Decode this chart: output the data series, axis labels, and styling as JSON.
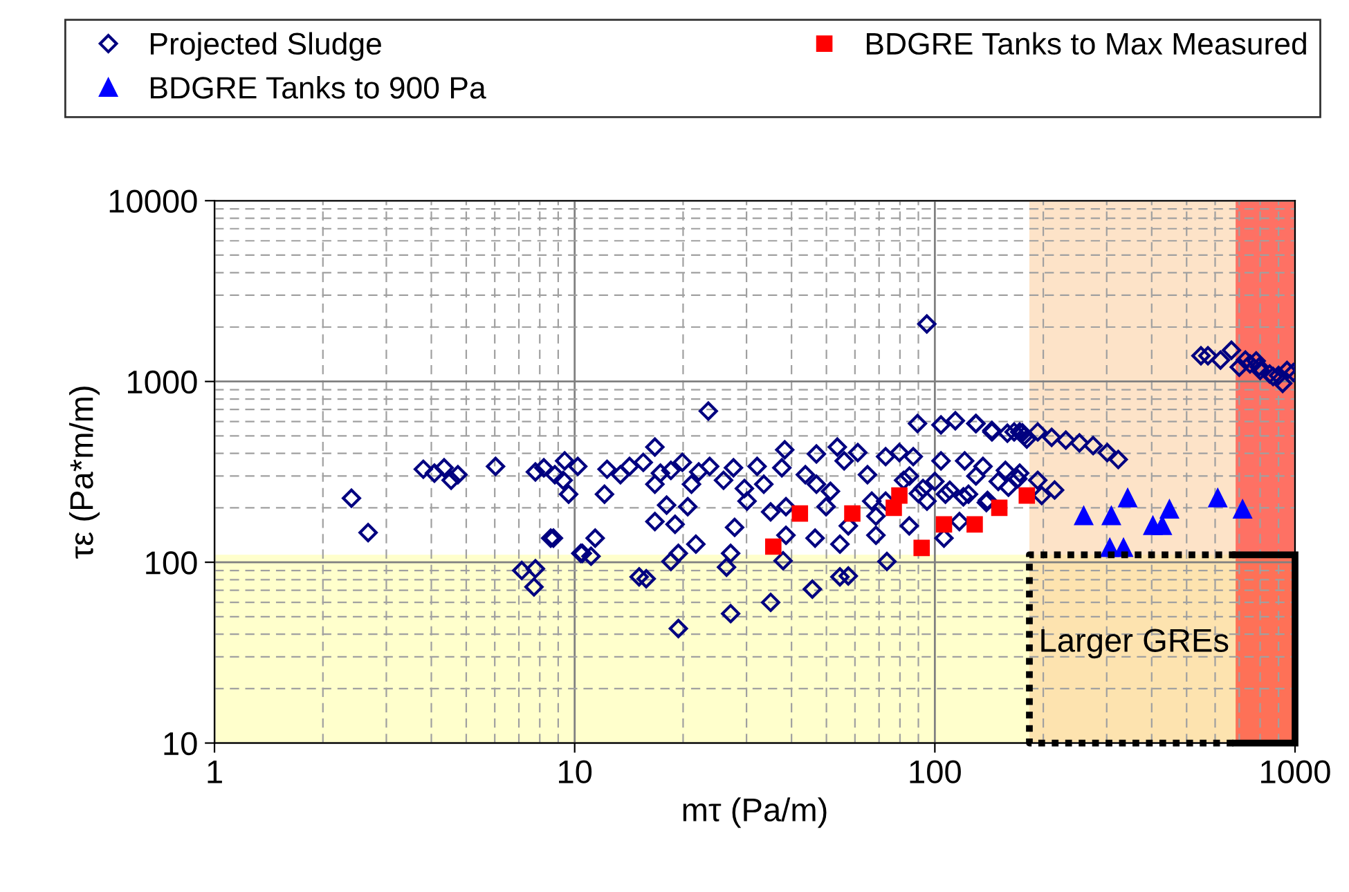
{
  "chart_data": {
    "type": "scatter",
    "xlabel": "mτ (Pa/m)",
    "ylabel": "τε (Pa*m/m)",
    "log": "xy",
    "xlim": [
      1,
      1000
    ],
    "xticks": [
      1,
      10,
      100,
      1000
    ],
    "ylim": [
      10,
      10000
    ],
    "yticks": [
      10,
      100,
      1000,
      10000
    ],
    "grid": true,
    "legend": "top",
    "series": [
      {
        "name": "Projected Sludge",
        "color": "#000080",
        "marker": "diamond",
        "x": [
          2.4,
          2.67,
          3.8,
          4.08,
          4.34,
          4.54,
          4.74,
          6.03,
          7.78,
          8.21,
          8.81,
          9.38,
          9.29,
          10.2,
          9.62,
          12.1,
          8.58,
          11.4,
          7.13,
          7.78,
          7.71,
          10.5,
          11.1,
          12.3,
          13.4,
          14.2,
          15.5,
          16.7,
          16.7,
          17.3,
          18.5,
          19.9,
          21.1,
          22.1,
          23.7,
          18.0,
          20.6,
          16.7,
          19.0,
          19.4,
          21.7,
          8.73,
          25.9,
          27.6,
          29.6,
          30.1,
          27.8,
          32.1,
          33.5,
          38.3,
          37.6,
          35.0,
          38.6,
          38.6,
          43.7,
          46.9,
          46.9,
          51.3,
          49.9,
          46.5,
          54.5,
          53.6,
          56.0,
          57.5,
          61.1,
          65.0,
          66.8,
          68.6,
          73.0,
          79.7,
          87.1,
          81.9,
          84.9,
          89.5,
          104,
          114,
          130,
          144,
          166,
          177,
          104,
          121,
          136,
          157,
          172,
          92.7,
          107,
          124,
          139,
          117,
          106,
          95.1,
          73.0,
          68.6,
          10.4,
          15.1,
          15.8,
          18.5,
          19.4,
          26.4,
          27.1,
          27.1,
          35.0,
          45.7,
          54.5,
          57.5,
          73.6,
          37.9,
          130,
          144,
          159,
          172,
          193,
          211,
          231,
          252,
          275,
          301,
          323,
          193,
          215,
          198,
          573,
          621,
          666,
          728,
          795,
          869,
          924,
          990,
          95,
          23.5,
          110,
          120,
          140,
          160,
          150,
          130,
          100,
          90,
          85,
          170,
          180,
          175,
          750,
          800,
          850,
          900,
          950,
          700,
          780,
          548
        ],
        "values": [
          226,
          146,
          327,
          311,
          333,
          284,
          305,
          339,
          316,
          333,
          305,
          364,
          284,
          339,
          238,
          238,
          136,
          136,
          90,
          92,
          73,
          112,
          108,
          327,
          305,
          339,
          357,
          434,
          270,
          311,
          322,
          357,
          270,
          316,
          339,
          207,
          203,
          168,
          162,
          112,
          126,
          136,
          284,
          333,
          256,
          218,
          156,
          339,
          270,
          419,
          333,
          190,
          141,
          203,
          305,
          397,
          270,
          247,
          203,
          136,
          126,
          434,
          364,
          159,
          404,
          305,
          218,
          180,
          384,
          404,
          384,
          284,
          159,
          585,
          575,
          606,
          585,
          526,
          526,
          500,
          364,
          364,
          339,
          322,
          311,
          256,
          238,
          238,
          214,
          168,
          136,
          218,
          218,
          141,
          112,
          83,
          81,
          101,
          43,
          94,
          112,
          52,
          60,
          71,
          83,
          84,
          101,
          102,
          585,
          536,
          517,
          526,
          526,
          491,
          474,
          457,
          442,
          404,
          370,
          284,
          251,
          234,
          1387,
          1314,
          1489,
          1314,
          1205,
          1066,
          976,
          1122,
          2080,
          686,
          250,
          230,
          220,
          260,
          280,
          300,
          280,
          240,
          300,
          290,
          480,
          520,
          1250,
          1150,
          1100,
          1080,
          1150,
          1200,
          1300,
          1387
        ]
      },
      {
        "name": "BDGRE Tanks to Max Measured",
        "color": "#ff0000",
        "marker": "square",
        "x": [
          35.6,
          42.2,
          59.0,
          76.9,
          79.7,
          91.9,
          106,
          129,
          151,
          180
        ],
        "values": [
          122,
          186,
          186,
          200,
          234,
          120,
          162,
          162,
          200,
          234
        ]
      },
      {
        "name": "BDGRE Tanks to 900 Pa",
        "color": "#0000ff",
        "marker": "triangle",
        "x": [
          259,
          309,
          343,
          403,
          428,
          448,
          610,
          715,
          306,
          334
        ],
        "values": [
          180,
          180,
          226,
          159,
          159,
          196,
          226,
          196,
          120,
          120
        ]
      }
    ],
    "bands": [
      {
        "axis": "y",
        "from": 10,
        "to": 110,
        "color": "#ffff99"
      },
      {
        "axis": "x",
        "from": 183,
        "to": 1000,
        "color": "#fcc791"
      },
      {
        "axis": "x",
        "from": 684,
        "to": 1000,
        "color": "#ff0000"
      }
    ],
    "annotations": [
      "Larger GREs"
    ]
  }
}
